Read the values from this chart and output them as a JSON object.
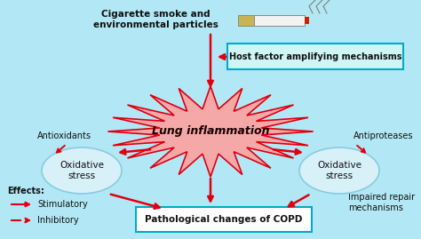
{
  "bg_color": "#b2e8f5",
  "cigarette_text": "Cigarette smoke and\nenvironmental particles",
  "host_factor_text": "Host factor amplifying mechanisms",
  "lung_inflammation_text": "Lung inflammation",
  "antioxidants_text": "Antioxidants",
  "antiproteases_text": "Antiproteases",
  "oxidative_stress_left_text": "Oxidative\nstress",
  "oxidative_stress_right_text": "Oxidative\nstress",
  "pathological_text": "Pathological changes of COPD",
  "impaired_text": "Impaired repair\nmechanisms",
  "effects_text": "Effects:",
  "stimulatory_text": "Stimulatory",
  "inhibitory_text": "Inhibitory",
  "red_color": "#e00010",
  "dark_text": "#111111",
  "star_fill": "#f5a8a8",
  "star_edge": "#dd0010",
  "oval_fill": "#d8f0f8",
  "oval_edge": "#88cce0",
  "host_box_fill": "#d0f5f5",
  "host_box_edge": "#00aacc",
  "path_box_fill": "#ffffff",
  "path_box_edge": "#00aacc",
  "cig_white": "#f2f2f2",
  "cig_filter": "#c8b455",
  "cig_tip": "#cc2200",
  "smoke_color": "#888888"
}
